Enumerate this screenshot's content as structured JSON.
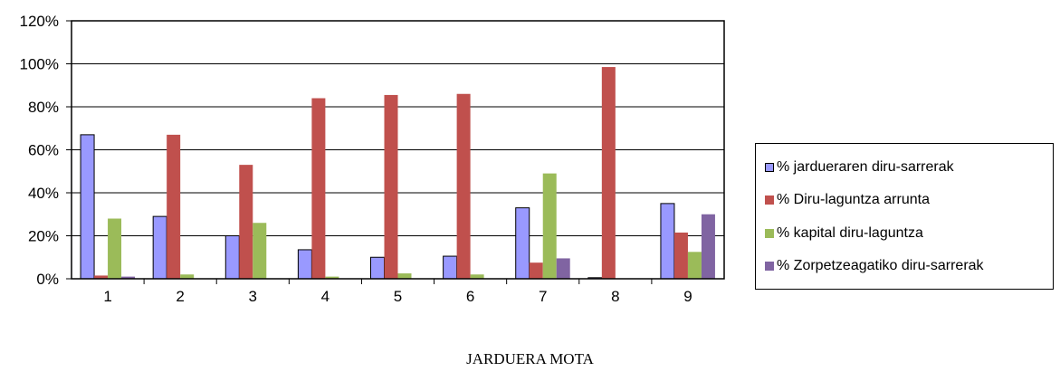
{
  "chart_data": {
    "type": "bar",
    "title": "",
    "xlabel": "JARDUERA MOTA",
    "ylabel": "",
    "categories": [
      "1",
      "2",
      "3",
      "4",
      "5",
      "6",
      "7",
      "8",
      "9"
    ],
    "ylim": [
      0,
      120
    ],
    "yticks": [
      "0%",
      "20%",
      "40%",
      "60%",
      "80%",
      "100%",
      "120%"
    ],
    "grid": true,
    "legend_position": "right",
    "series": [
      {
        "name": "% jardueraren diru-sarrerak",
        "color": "#9999ff",
        "values": [
          67,
          29,
          20,
          13.5,
          10,
          10.5,
          33,
          0.5,
          35
        ]
      },
      {
        "name": "% Diru-laguntza arrunta",
        "color": "#c0504d",
        "values": [
          1.5,
          67,
          53,
          84,
          85.5,
          86,
          7.5,
          98.5,
          21.5
        ]
      },
      {
        "name": "% kapital diru-laguntza",
        "color": "#9bbb59",
        "values": [
          28,
          2,
          26,
          1,
          2.5,
          2,
          49,
          0,
          12.5
        ]
      },
      {
        "name": "% Zorpetzeagatiko diru-sarrerak",
        "color": "#8064a2",
        "values": [
          1,
          0,
          0,
          0,
          0,
          0,
          9.5,
          0,
          30
        ]
      }
    ]
  }
}
